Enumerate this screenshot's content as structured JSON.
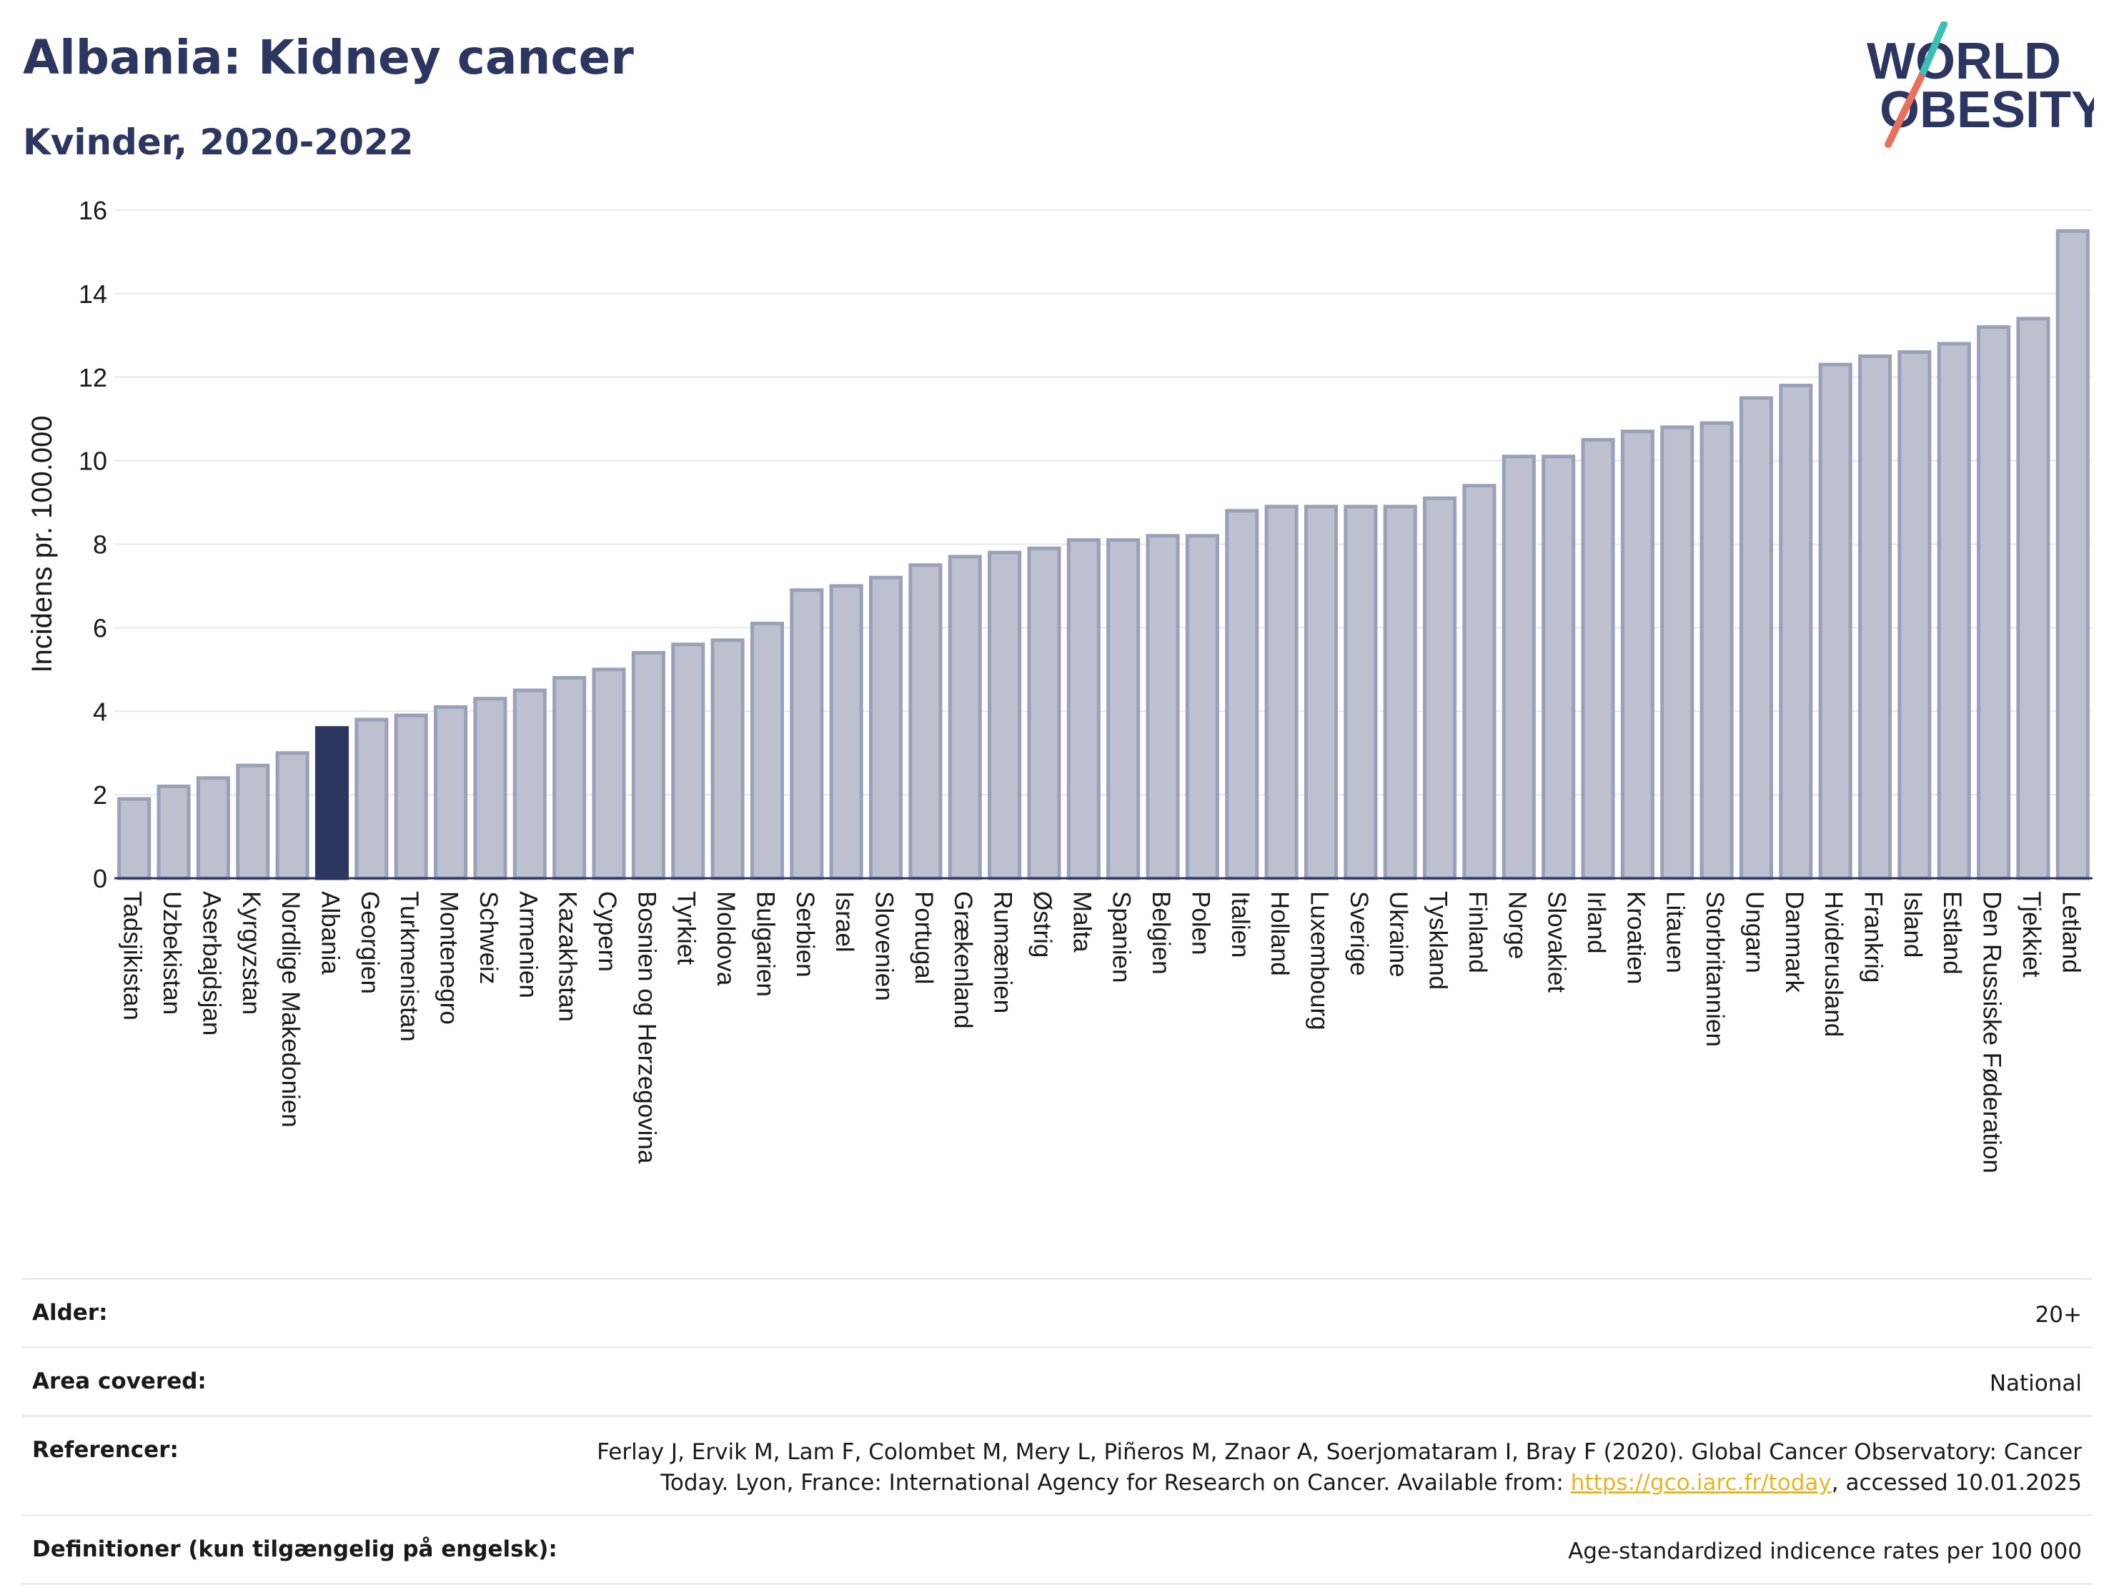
{
  "header": {
    "title": "Albania: Kidney cancer",
    "subtitle": "Kvinder, 2020-2022"
  },
  "logo": {
    "line1": "WORLD",
    "line2": "OBESITY",
    "colors": {
      "text": "#2d3561",
      "slash_top": "#3bbfb4",
      "slash_bottom": "#e8705c"
    }
  },
  "chart_data": {
    "type": "bar",
    "ylabel": "Incidens pr. 100.000",
    "ylim": [
      0,
      16
    ],
    "yticks": [
      0,
      2,
      4,
      6,
      8,
      10,
      12,
      14,
      16
    ],
    "grid": true,
    "highlight": "Albania",
    "colors": {
      "bar": "#bcc0cf",
      "bar_edge": "#9aa0b8",
      "highlight": "#2d3561",
      "grid": "#e6e8ee",
      "axis": "#2d3561"
    },
    "categories": [
      "Tadsjikistan",
      "Uzbekistan",
      "Aserbajdsjan",
      "Kyrgyzstan",
      "Nordlige Makedonien",
      "Albania",
      "Georgien",
      "Turkmenistan",
      "Montenegro",
      "Schweiz",
      "Armenien",
      "Kazakhstan",
      "Cypern",
      "Bosnien og Herzegovina",
      "Tyrkiet",
      "Moldova",
      "Bulgarien",
      "Serbien",
      "Israel",
      "Slovenien",
      "Portugal",
      "Grækenland",
      "Rumænien",
      "Østrig",
      "Malta",
      "Spanien",
      "Belgien",
      "Polen",
      "Italien",
      "Holland",
      "Luxembourg",
      "Sverige",
      "Ukraine",
      "Tyskland",
      "Finland",
      "Norge",
      "Slovakiet",
      "Irland",
      "Kroatien",
      "Litauen",
      "Storbritannien",
      "Ungarn",
      "Danmark",
      "Hviderusland",
      "Frankrig",
      "Island",
      "Estland",
      "Den Russiske Føderation",
      "Tjekkiet",
      "Letland"
    ],
    "values": [
      1.9,
      2.2,
      2.4,
      2.7,
      3.0,
      3.6,
      3.8,
      3.9,
      4.1,
      4.3,
      4.5,
      4.8,
      5.0,
      5.4,
      5.6,
      5.7,
      6.1,
      6.9,
      7.0,
      7.2,
      7.5,
      7.7,
      7.8,
      7.9,
      8.1,
      8.1,
      8.2,
      8.2,
      8.8,
      8.9,
      8.9,
      8.9,
      8.9,
      9.1,
      9.4,
      10.1,
      10.1,
      10.5,
      10.7,
      10.8,
      10.9,
      11.5,
      11.8,
      12.3,
      12.5,
      12.6,
      12.8,
      13.2,
      13.4,
      15.5
    ]
  },
  "info": {
    "age_label": "Alder:",
    "age_value": "20+",
    "area_label": "Area covered:",
    "area_value": "National",
    "ref_label": "Referencer:",
    "ref_text": "Ferlay J, Ervik M, Lam F, Colombet M, Mery L, Piñeros M, Znaor A, Soerjomataram I, Bray F (2020). Global Cancer Observatory: Cancer Today. Lyon, France: International Agency for Research on Cancer. Available from: ",
    "ref_link": "https://gco.iarc.fr/today",
    "ref_suffix": ", accessed 10.01.2025",
    "def_label": "Definitioner (kun tilgængelig på engelsk):",
    "def_value": "Age-standardized indicence rates per 100 000"
  }
}
